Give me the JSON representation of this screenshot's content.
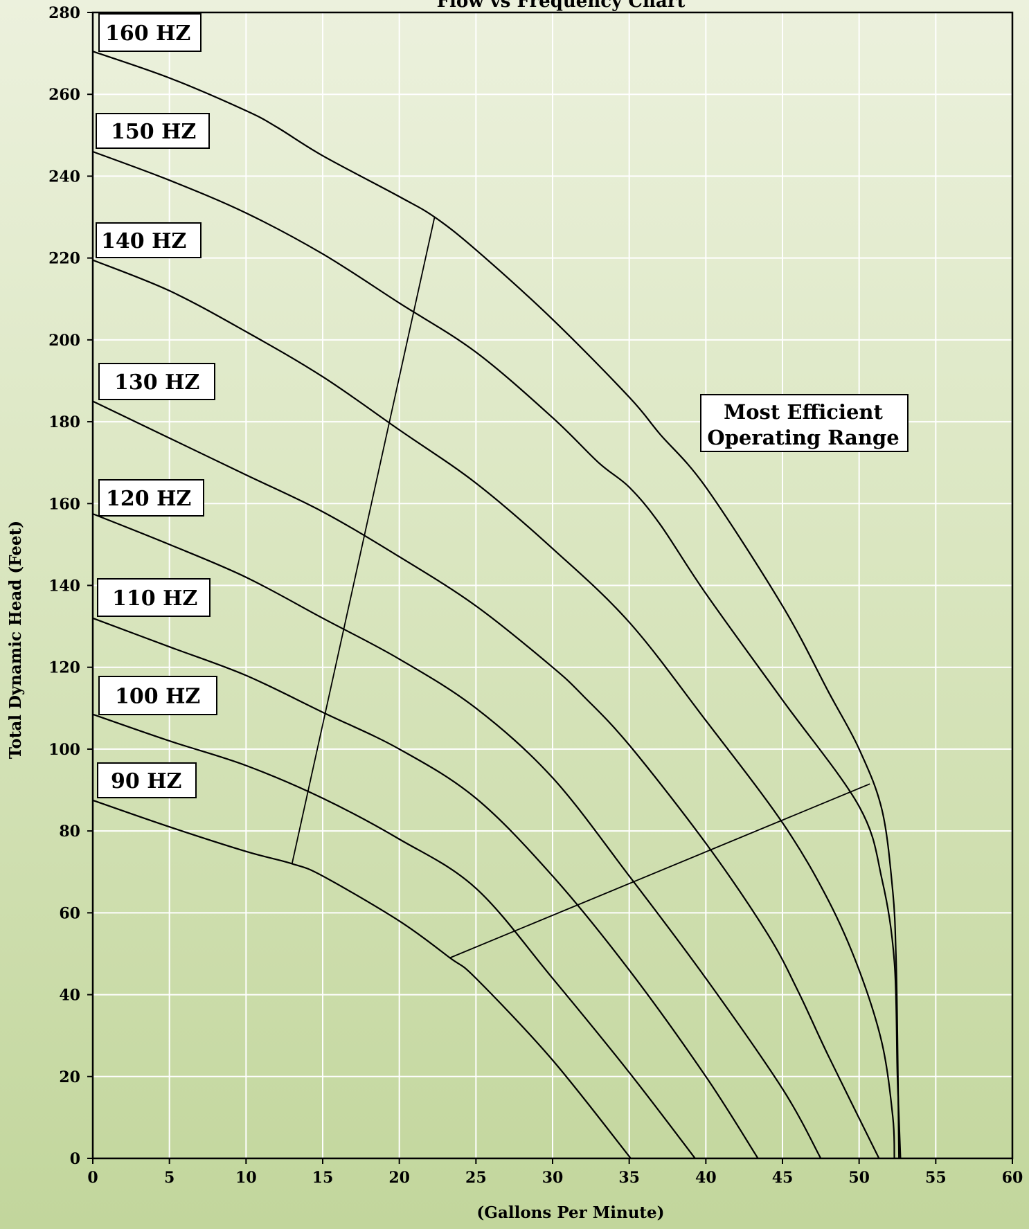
{
  "chart_data": {
    "type": "line",
    "title": "Flow vs Frequency Chart",
    "xlabel": "(Gallons Per Minute)",
    "ylabel": "Total Dynamic Head (Feet)",
    "xlim": [
      0,
      60
    ],
    "ylim": [
      0,
      280
    ],
    "xticks": [
      0,
      5,
      10,
      15,
      20,
      25,
      30,
      35,
      40,
      45,
      50,
      55,
      60
    ],
    "yticks": [
      0,
      20,
      40,
      60,
      80,
      100,
      120,
      140,
      160,
      180,
      200,
      220,
      240,
      260,
      280
    ],
    "grid": true,
    "series": [
      {
        "name": "160 HZ",
        "points": [
          [
            0,
            270.5
          ],
          [
            5,
            264
          ],
          [
            10,
            256
          ],
          [
            12,
            252
          ],
          [
            15,
            245
          ],
          [
            20,
            235
          ],
          [
            22.3,
            230
          ],
          [
            25,
            222
          ],
          [
            30,
            205
          ],
          [
            35,
            186
          ],
          [
            37,
            177
          ],
          [
            40,
            164
          ],
          [
            45,
            135
          ],
          [
            48,
            114
          ],
          [
            50,
            100
          ],
          [
            51.5,
            85
          ],
          [
            52.2,
            65
          ],
          [
            52.4,
            50
          ],
          [
            52.5,
            30
          ],
          [
            52.6,
            0
          ]
        ]
      },
      {
        "name": "150 HZ",
        "points": [
          [
            0,
            246
          ],
          [
            5,
            239
          ],
          [
            10,
            231
          ],
          [
            15,
            221
          ],
          [
            20,
            209
          ],
          [
            25,
            197
          ],
          [
            30,
            181
          ],
          [
            33,
            170
          ],
          [
            35,
            164
          ],
          [
            37,
            155
          ],
          [
            40,
            138
          ],
          [
            45,
            112
          ],
          [
            50,
            86
          ],
          [
            51.5,
            68
          ],
          [
            52.3,
            48
          ],
          [
            52.5,
            20
          ],
          [
            52.7,
            0
          ]
        ]
      },
      {
        "name": "140 HZ",
        "points": [
          [
            0,
            219.5
          ],
          [
            5,
            212
          ],
          [
            10,
            202
          ],
          [
            15,
            191
          ],
          [
            20,
            178
          ],
          [
            25,
            165
          ],
          [
            30,
            149
          ],
          [
            35,
            131
          ],
          [
            40,
            107
          ],
          [
            45,
            82
          ],
          [
            48,
            63
          ],
          [
            50,
            46
          ],
          [
            51.5,
            28
          ],
          [
            52.2,
            10
          ],
          [
            52.3,
            0
          ]
        ]
      },
      {
        "name": "130 HZ",
        "points": [
          [
            0,
            185
          ],
          [
            5,
            176
          ],
          [
            10,
            167
          ],
          [
            15,
            158
          ],
          [
            20,
            147
          ],
          [
            25,
            135
          ],
          [
            30,
            120
          ],
          [
            32,
            113
          ],
          [
            35,
            101
          ],
          [
            40,
            77
          ],
          [
            44,
            55
          ],
          [
            46,
            41
          ],
          [
            48,
            25
          ],
          [
            51.3,
            0
          ]
        ]
      },
      {
        "name": "120 HZ",
        "points": [
          [
            0,
            157.5
          ],
          [
            5,
            150
          ],
          [
            10,
            142
          ],
          [
            15,
            132
          ],
          [
            20,
            122
          ],
          [
            25,
            110
          ],
          [
            30,
            93
          ],
          [
            35,
            69
          ],
          [
            40,
            44
          ],
          [
            45,
            17
          ],
          [
            47.5,
            0
          ]
        ]
      },
      {
        "name": "110 HZ",
        "points": [
          [
            0,
            132
          ],
          [
            5,
            125
          ],
          [
            10,
            118
          ],
          [
            15,
            109
          ],
          [
            20,
            100
          ],
          [
            25,
            88
          ],
          [
            30,
            69
          ],
          [
            35,
            46
          ],
          [
            40,
            20
          ],
          [
            43.4,
            0
          ]
        ]
      },
      {
        "name": "100 HZ",
        "points": [
          [
            0,
            108.5
          ],
          [
            5,
            102
          ],
          [
            10,
            96
          ],
          [
            15,
            88
          ],
          [
            20,
            78
          ],
          [
            25,
            66
          ],
          [
            30,
            44
          ],
          [
            35,
            21
          ],
          [
            39.3,
            0
          ]
        ]
      },
      {
        "name": "90 HZ",
        "points": [
          [
            0,
            87.5
          ],
          [
            5,
            81
          ],
          [
            10,
            75
          ],
          [
            13,
            72
          ],
          [
            15,
            69
          ],
          [
            20,
            58
          ],
          [
            23.3,
            49
          ],
          [
            25,
            44
          ],
          [
            30,
            24
          ],
          [
            35.1,
            0
          ]
        ]
      }
    ],
    "hz_labels": [
      "160 HZ",
      "150 HZ",
      "140 HZ",
      "130 HZ",
      "120 HZ",
      "110 HZ",
      "100 HZ",
      "90 HZ"
    ],
    "efficient_range": {
      "label_lines": [
        "Most Efficient",
        "Operating Range"
      ],
      "left_boundary": [
        [
          13,
          72
        ],
        [
          22.3,
          230
        ]
      ],
      "right_boundary": [
        [
          23.3,
          49
        ],
        [
          50.7,
          91.5
        ]
      ]
    }
  }
}
